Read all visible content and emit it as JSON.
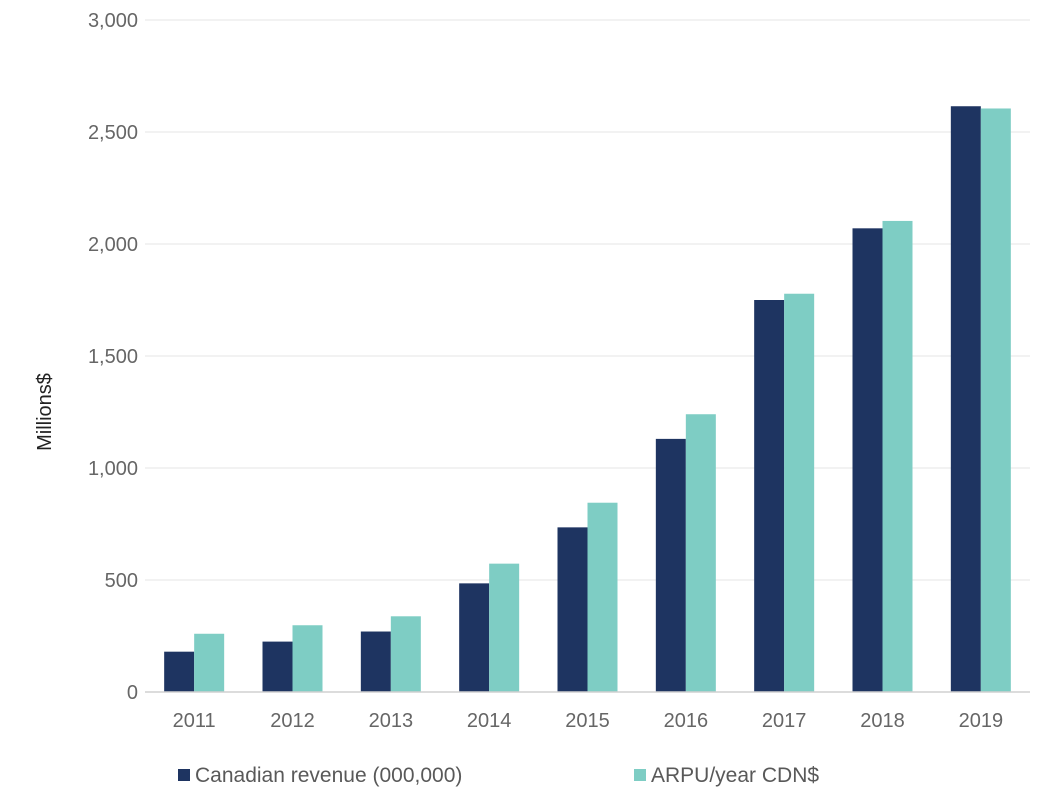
{
  "chart_data": {
    "type": "bar",
    "title": "",
    "xlabel": "",
    "ylabel": "Millions$",
    "ylim": [
      0,
      3000
    ],
    "yticks": [
      0,
      500,
      1000,
      1500,
      2000,
      2500,
      3000
    ],
    "ytick_labels": [
      "0",
      "500",
      "1,000",
      "1,500",
      "2,000",
      "2,500",
      "3,000"
    ],
    "categories": [
      "2011",
      "2012",
      "2013",
      "2014",
      "2015",
      "2016",
      "2017",
      "2018",
      "2019"
    ],
    "grid": true,
    "legend": "bottom",
    "series": [
      {
        "name": "Canadian revenue (000,000)",
        "color": "#1e3461",
        "values": [
          180,
          225,
          270,
          485,
          735,
          1130,
          1750,
          2070,
          2615
        ]
      },
      {
        "name": "ARPU/year CDN$",
        "color": "#7ecdc4",
        "values": [
          260,
          298,
          338,
          573,
          845,
          1240,
          1778,
          2103,
          2605
        ]
      }
    ]
  }
}
